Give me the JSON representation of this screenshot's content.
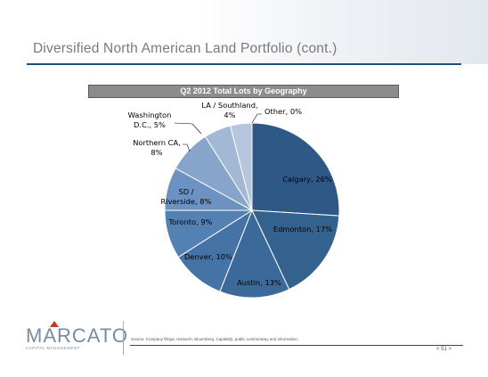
{
  "slide": {
    "title": "Diversified North American Land Portfolio (cont.)"
  },
  "chart_data": {
    "type": "pie",
    "title": "Q2 2012 Total Lots by Geography",
    "slices": [
      {
        "label": "Calgary, 26%",
        "name": "Calgary",
        "value": 26,
        "color": "#2e5986"
      },
      {
        "label": "Edmonton, 17%",
        "name": "Edmonton",
        "value": 17,
        "color": "#34628f"
      },
      {
        "label": "Austin, 13%",
        "name": "Austin",
        "value": 13,
        "color": "#3b6a9a"
      },
      {
        "label": "Denver, 10%",
        "name": "Denver",
        "value": 10,
        "color": "#4673a5"
      },
      {
        "label": "Toronto, 9%",
        "name": "Toronto",
        "value": 9,
        "color": "#5381b3"
      },
      {
        "label": "SD / Riverside, 8%",
        "name": "SD / Riverside",
        "value": 8,
        "color": "#6b92c0"
      },
      {
        "label": "Northern CA, 8%",
        "name": "Northern CA",
        "value": 8,
        "color": "#87a5cb"
      },
      {
        "label": "Washington D.C., 5%",
        "name": "Washington D.C.",
        "value": 5,
        "color": "#a2b8d5"
      },
      {
        "label": "LA / Southland, 4%",
        "name": "LA / Southland",
        "value": 4,
        "color": "#b6c6dd"
      },
      {
        "label": "Other, 0%",
        "name": "Other",
        "value": 0,
        "color": "#c8d4e6"
      }
    ]
  },
  "footer": {
    "logo": "MARCATO",
    "logo_sub": "CAPITAL MANAGEMENT",
    "source": "Source: Company filings, research, Bloomberg, CapitalIQ, public commentary and information.",
    "page": "< 51 >"
  }
}
